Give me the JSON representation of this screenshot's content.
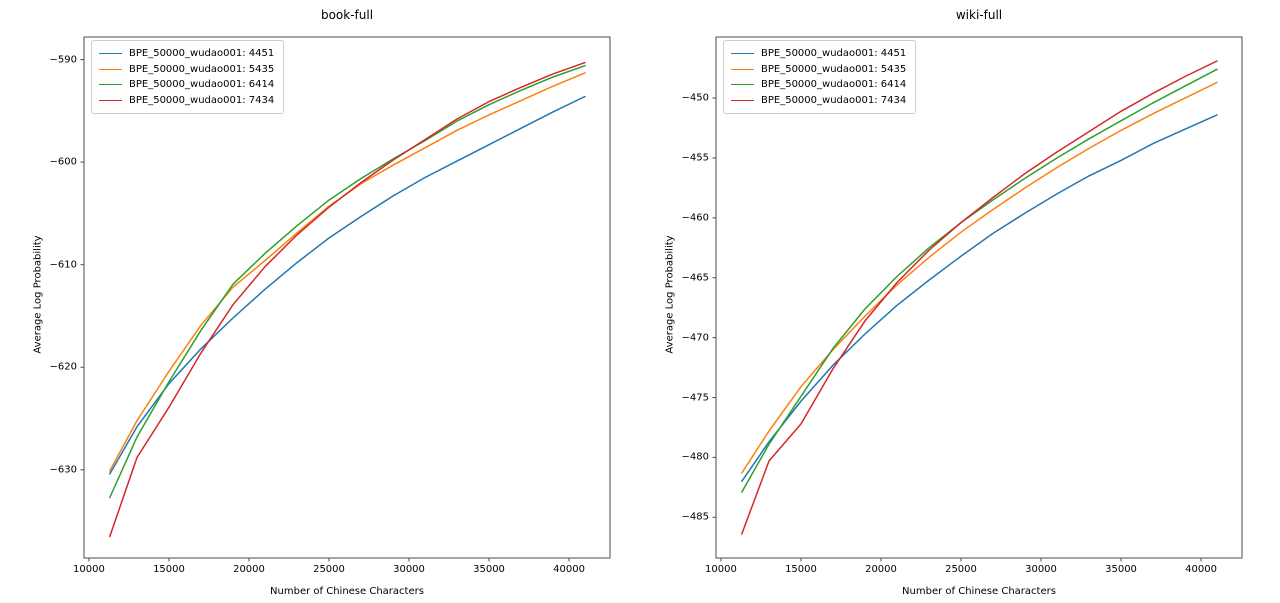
{
  "figure": {
    "background": "#ffffff",
    "text_color": "#000000",
    "spine_color": "#4d4d4d"
  },
  "chart_data": [
    {
      "type": "line",
      "title": "book-full",
      "xlabel": "Number of Chinese Characters",
      "ylabel": "Average Log Probability",
      "xlim": [
        9690,
        42560
      ],
      "ylim": [
        -638.6,
        -587.8
      ],
      "xticks": [
        10000,
        15000,
        20000,
        25000,
        30000,
        35000,
        40000
      ],
      "yticks": [
        -590,
        -600,
        -610,
        -620,
        -630
      ],
      "grid": false,
      "legend_position": "upper left",
      "x": [
        11300,
        13000,
        15000,
        17000,
        19000,
        21000,
        23000,
        25000,
        27000,
        29000,
        31000,
        33000,
        35000,
        37000,
        39000,
        41000
      ],
      "series": [
        {
          "name": "BPE_50000_wudao001: 4451",
          "color": "#1f77b4",
          "values": [
            -630.4,
            -625.8,
            -621.6,
            -618.2,
            -615.2,
            -612.4,
            -609.8,
            -607.4,
            -605.3,
            -603.3,
            -601.5,
            -599.9,
            -598.3,
            -596.7,
            -595.1,
            -593.6
          ]
        },
        {
          "name": "BPE_50000_wudao001: 5435",
          "color": "#ff7f0e",
          "values": [
            -630.1,
            -625.2,
            -620.4,
            -615.9,
            -612.2,
            -609.6,
            -606.9,
            -604.3,
            -602.1,
            -600.3,
            -598.6,
            -596.9,
            -595.4,
            -594.0,
            -592.6,
            -591.3
          ]
        },
        {
          "name": "BPE_50000_wudao001: 6414",
          "color": "#2ca02c",
          "values": [
            -632.7,
            -626.8,
            -621.4,
            -616.4,
            -611.9,
            -608.9,
            -606.2,
            -603.7,
            -601.6,
            -599.7,
            -597.9,
            -596.0,
            -594.4,
            -593.0,
            -591.7,
            -590.6
          ]
        },
        {
          "name": "BPE_50000_wudao001: 7434",
          "color": "#d62728",
          "values": [
            -636.5,
            -628.8,
            -623.9,
            -618.6,
            -613.9,
            -610.2,
            -607.1,
            -604.4,
            -602.0,
            -599.8,
            -597.8,
            -595.8,
            -594.1,
            -592.7,
            -591.4,
            -590.3
          ]
        }
      ]
    },
    {
      "type": "line",
      "title": "wiki-full",
      "xlabel": "Number of Chinese Characters",
      "ylabel": "Average Log Probability",
      "xlim": [
        9690,
        42560
      ],
      "ylim": [
        -488.4,
        -444.9
      ],
      "xticks": [
        10000,
        15000,
        20000,
        25000,
        30000,
        35000,
        40000
      ],
      "yticks": [
        -450,
        -455,
        -460,
        -465,
        -470,
        -475,
        -480,
        -485
      ],
      "grid": false,
      "legend_position": "upper left",
      "x": [
        11300,
        13000,
        15000,
        17000,
        19000,
        21000,
        23000,
        25000,
        27000,
        29000,
        31000,
        33000,
        35000,
        37000,
        39000,
        41000
      ],
      "series": [
        {
          "name": "BPE_50000_wudao001: 4451",
          "color": "#1f77b4",
          "values": [
            -482.0,
            -478.7,
            -475.3,
            -472.3,
            -469.7,
            -467.3,
            -465.2,
            -463.2,
            -461.3,
            -459.6,
            -458.0,
            -456.5,
            -455.2,
            -453.8,
            -452.6,
            -451.4
          ]
        },
        {
          "name": "BPE_50000_wudao001: 5435",
          "color": "#ff7f0e",
          "values": [
            -481.3,
            -477.8,
            -474.1,
            -471.0,
            -468.2,
            -465.6,
            -463.3,
            -461.2,
            -459.3,
            -457.5,
            -455.8,
            -454.2,
            -452.7,
            -451.3,
            -450.0,
            -448.7
          ]
        },
        {
          "name": "BPE_50000_wudao001: 6414",
          "color": "#2ca02c",
          "values": [
            -482.9,
            -478.9,
            -474.9,
            -470.9,
            -467.6,
            -464.9,
            -462.5,
            -460.4,
            -458.5,
            -456.7,
            -455.0,
            -453.4,
            -451.9,
            -450.4,
            -449.0,
            -447.6
          ]
        },
        {
          "name": "BPE_50000_wudao001: 7434",
          "color": "#d62728",
          "values": [
            -486.4,
            -480.3,
            -477.2,
            -472.6,
            -468.6,
            -465.4,
            -462.7,
            -460.4,
            -458.3,
            -456.3,
            -454.5,
            -452.8,
            -451.1,
            -449.6,
            -448.2,
            -446.9
          ]
        }
      ]
    }
  ]
}
